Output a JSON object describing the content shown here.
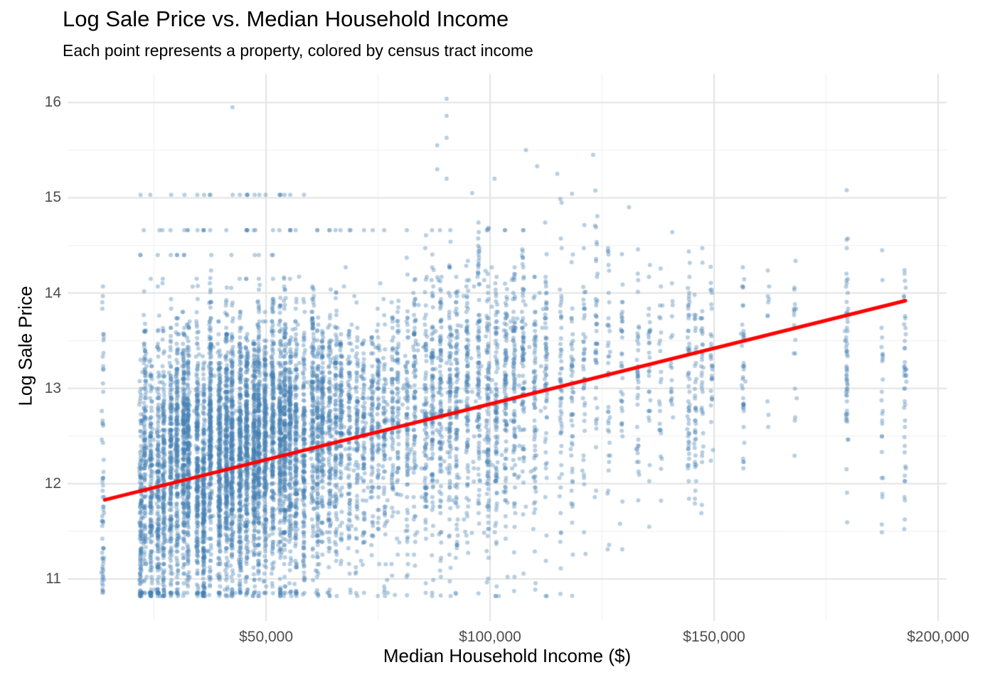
{
  "chart_data": {
    "type": "scatter",
    "title": "Log Sale Price vs. Median Household Income",
    "subtitle": "Each point represents a property, colored by census tract income",
    "xlabel": "Median Household Income ($)",
    "ylabel": "Log Sale Price",
    "x_ticks": [
      {
        "value": 50000,
        "label": "$50,000"
      },
      {
        "value": 100000,
        "label": "$100,000"
      },
      {
        "value": 150000,
        "label": "$150,000"
      },
      {
        "value": 200000,
        "label": "$200,000"
      }
    ],
    "y_ticks": [
      {
        "value": 11,
        "label": "11"
      },
      {
        "value": 12,
        "label": "12"
      },
      {
        "value": 13,
        "label": "13"
      },
      {
        "value": 14,
        "label": "14"
      },
      {
        "value": 15,
        "label": "15"
      },
      {
        "value": 16,
        "label": "16"
      }
    ],
    "x_minor": [
      25000,
      75000,
      125000,
      175000
    ],
    "y_minor": [
      11.5,
      12.5,
      13.5,
      14.5,
      15.5
    ],
    "x_range": [
      5700,
      201900
    ],
    "y_range": [
      10.56,
      16.3
    ],
    "grid": {
      "major_color": "#E3E3E3",
      "minor_color": "#EFEFEF",
      "background": "#FFFFFF"
    },
    "tick_color": "#4D4D4D",
    "point_style": {
      "color": "#4682B4",
      "alpha": 0.38,
      "radius": 3.0
    },
    "trend_line": {
      "color": "#FF0000",
      "width": 5,
      "x1": 14000,
      "y1": 11.83,
      "x2": 192700,
      "y2": 13.92
    },
    "scatter_spec": {
      "seed": 1337,
      "floor_y": 10.82,
      "trend_intercept": 11.666,
      "trend_slope": 1.17e-05,
      "stripe_center_sd": 0.15,
      "jitter_x": 0.9,
      "snap_step": 0.0335,
      "snap_prob": 0.55,
      "isolated_stripe": {
        "income": 13600,
        "n": 65,
        "y_min": 10.82,
        "y_max": 14.07,
        "bottom_bias": 1.6
      },
      "regions": [
        {
          "inc_min": 22000,
          "inc_max": 80500,
          "gap_base": 900,
          "gap_rand": 1200,
          "gap_growth": 0,
          "count_base": 60,
          "count_peak": 200,
          "peak_inc": 42000,
          "peak_width": 20000,
          "y_offset": 0.15,
          "y_sd": 0.72,
          "y_cap": 14.3,
          "cap_rand": 0.8
        },
        {
          "inc_min": 81500,
          "inc_max": 132000,
          "gap_base": 1500,
          "gap_rand": 1200,
          "gap_growth": 0.05,
          "count_base": 30,
          "count_peak": 70,
          "peak_inc": 95000,
          "peak_width": 22000,
          "y_offset": 0.1,
          "y_sd": 0.82,
          "y_cap": 15.45,
          "cap_rand": 1.2
        }
      ],
      "loose_points": {
        "n": 400,
        "inc_min": 22000,
        "inc_max": 112000,
        "y_offset": 0.15,
        "y_sd": 0.8,
        "y_cap": 14.3
      },
      "high_stripes": [
        [
          133000,
          40,
          -0.1
        ],
        [
          135500,
          30,
          0.0
        ],
        [
          138000,
          25,
          -0.2
        ],
        [
          140500,
          20,
          0.1
        ],
        [
          144300,
          55,
          -0.15
        ],
        [
          145800,
          40,
          -0.3
        ],
        [
          147300,
          35,
          -0.2
        ],
        [
          149400,
          30,
          -0.25
        ],
        [
          156500,
          40,
          -0.3
        ],
        [
          162000,
          10,
          -0.2
        ],
        [
          168000,
          18,
          -0.35
        ],
        [
          179600,
          60,
          -0.45
        ],
        [
          187500,
          25,
          -0.8
        ],
        [
          192600,
          45,
          -0.95
        ]
      ],
      "high_style": {
        "y_sd": 0.62,
        "cap_plus": 1.35,
        "min_minus": 2.0
      },
      "bands": [
        {
          "y": 14.66,
          "inc_min": 20000,
          "inc_max": 112000,
          "n": 46
        },
        {
          "y": 15.03,
          "inc_min": 20000,
          "inc_max": 60000,
          "n": 22
        },
        {
          "y": 14.4,
          "inc_min": 21000,
          "inc_max": 52000,
          "n": 14
        },
        {
          "y": 14.15,
          "inc_min": 24000,
          "inc_max": 56000,
          "n": 10
        }
      ],
      "outliers": [
        [
          42500,
          15.95
        ],
        [
          90300,
          16.04
        ],
        [
          90300,
          15.86
        ],
        [
          90300,
          15.63
        ],
        [
          88200,
          15.55
        ],
        [
          88200,
          15.3
        ],
        [
          90300,
          15.2
        ],
        [
          101000,
          15.2
        ],
        [
          96000,
          15.05
        ],
        [
          108000,
          15.5
        ],
        [
          110500,
          15.33
        ],
        [
          115000,
          15.25
        ],
        [
          123000,
          15.45
        ],
        [
          131000,
          14.9
        ],
        [
          179600,
          15.08
        ],
        [
          187500,
          14.45
        ],
        [
          13600,
          14.07
        ],
        [
          13600,
          10.88
        ]
      ]
    }
  }
}
